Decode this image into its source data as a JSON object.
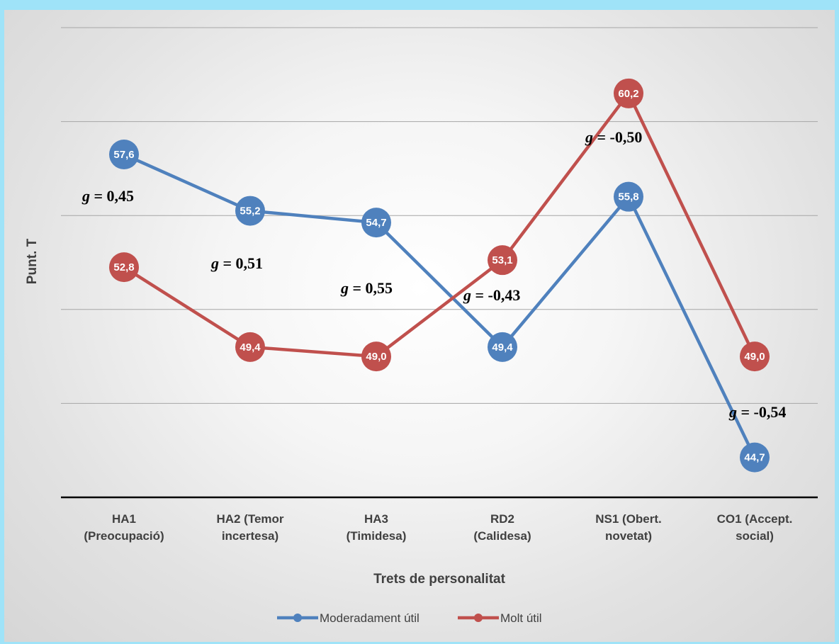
{
  "chart_data": {
    "type": "line",
    "categories": [
      [
        "HA1",
        "(Preocupació)"
      ],
      [
        "HA2 (Temor",
        "incertesa)"
      ],
      [
        "HA3",
        "(Timidesa)"
      ],
      [
        "RD2",
        "(Calidesa)"
      ],
      [
        "NS1 (Obert.",
        "novetat)"
      ],
      [
        "CO1 (Accept.",
        "social)"
      ]
    ],
    "series": [
      {
        "name": "Moderadament útil",
        "color": "#4f81bd",
        "values": [
          57.6,
          55.2,
          54.7,
          49.4,
          55.8,
          44.7
        ],
        "labels": [
          "57,6",
          "55,2",
          "54,7",
          "49,4",
          "55,8",
          "44,7"
        ]
      },
      {
        "name": "Molt útil",
        "color": "#c0504d",
        "values": [
          52.8,
          49.4,
          49.0,
          53.1,
          60.2,
          49.0
        ],
        "labels": [
          "52,8",
          "49,4",
          "49,0",
          "53,1",
          "60,2",
          "49,0"
        ]
      }
    ],
    "effect_sizes": [
      {
        "category": 0,
        "g": "g",
        "text": " = 0,45"
      },
      {
        "category": 1,
        "g": "g",
        "text": " = 0,51"
      },
      {
        "category": 2,
        "g": "g",
        "text": " = 0,55"
      },
      {
        "category": 3,
        "g": "g",
        "text": " = -0,43"
      },
      {
        "category": 4,
        "g": "g",
        "text": " = -0,50"
      },
      {
        "category": 5,
        "g": "g",
        "text": " = -0,54"
      }
    ],
    "xlabel": "Trets de personalitat",
    "ylabel": "Punt. T",
    "ylim": [
      43,
      63
    ],
    "gridlines": [
      43,
      47,
      51,
      55,
      59,
      63
    ],
    "grid": true,
    "legend_position": "bottom"
  }
}
